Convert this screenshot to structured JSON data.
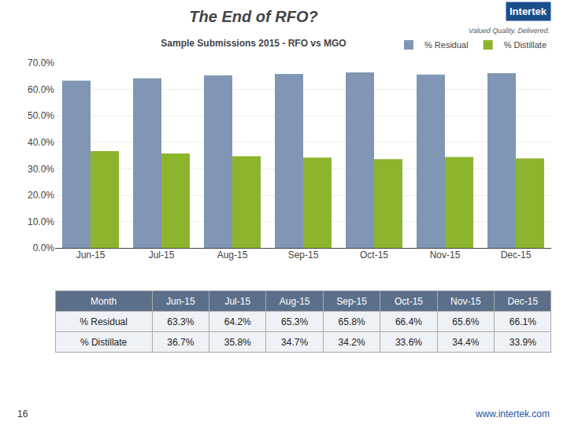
{
  "chart_data": {
    "type": "bar",
    "title": "The End of RFO?",
    "subtitle": "Sample Submissions 2015 - RFO vs MGO",
    "categories": [
      "Jun-15",
      "Jul-15",
      "Aug-15",
      "Sep-15",
      "Oct-15",
      "Nov-15",
      "Dec-15"
    ],
    "series": [
      {
        "name": "% Residual",
        "color": "#8096b4",
        "values": [
          63.3,
          64.2,
          65.3,
          65.8,
          66.4,
          65.6,
          66.1
        ],
        "value_labels": [
          "63.3%",
          "64.2%",
          "65.3%",
          "65.8%",
          "66.4%",
          "65.6%",
          "66.1%"
        ]
      },
      {
        "name": "% Distillate",
        "color": "#8db42d",
        "values": [
          36.7,
          35.8,
          34.7,
          34.2,
          33.6,
          34.4,
          33.9
        ],
        "value_labels": [
          "36.7%",
          "35.8%",
          "34.7%",
          "34.2%",
          "33.6%",
          "34.4%",
          "33.9%"
        ]
      }
    ],
    "ylim": [
      0,
      70
    ],
    "yticks": [
      {
        "value": 0,
        "label": "0.0%"
      },
      {
        "value": 10,
        "label": "10.0%"
      },
      {
        "value": 20,
        "label": "20.0%"
      },
      {
        "value": 30,
        "label": "30.0%"
      },
      {
        "value": 40,
        "label": "40.0%"
      },
      {
        "value": 50,
        "label": "50.0%"
      },
      {
        "value": 60,
        "label": "60.0%"
      },
      {
        "value": 70,
        "label": "70.0%"
      }
    ],
    "grid": true,
    "legend": "upper right",
    "annotations": [
      "Month",
      "Intertek",
      "Valued Quality. Delivered.",
      "16",
      "www.intertek.com"
    ]
  }
}
